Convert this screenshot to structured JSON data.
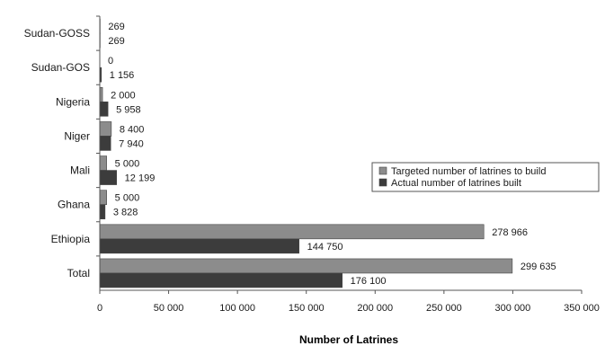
{
  "chart_data": {
    "type": "bar",
    "orientation": "horizontal",
    "categories": [
      "Sudan-GOSS",
      "Sudan-GOS",
      "Nigeria",
      "Niger",
      "Mali",
      "Ghana",
      "Ethiopia",
      "Total"
    ],
    "series": [
      {
        "name": "Targeted number of latrines to build",
        "color": "#8c8c8c",
        "values": [
          269,
          0,
          2000,
          8400,
          5000,
          5000,
          278966,
          299635
        ],
        "labels": [
          "269",
          "0",
          "2 000",
          "8 400",
          "5 000",
          "5 000",
          "278 966",
          "299 635"
        ]
      },
      {
        "name": "Actual number of latrines built",
        "color": "#3c3c3c",
        "values": [
          269,
          1156,
          5958,
          7940,
          12199,
          3828,
          144750,
          176100
        ],
        "labels": [
          "269",
          "1 156",
          "5 958",
          "7 940",
          "12 199",
          "3 828",
          "144 750",
          "176 100"
        ]
      }
    ],
    "xlim": [
      0,
      350000
    ],
    "xticks": [
      0,
      50000,
      100000,
      150000,
      200000,
      250000,
      300000,
      350000
    ],
    "xtick_labels": [
      "0",
      "50 000",
      "100 000",
      "150 000",
      "200 000",
      "250 000",
      "300 000",
      "350 000"
    ],
    "xlabel": "Number of Latrines",
    "ylabel": "",
    "title": "",
    "grid": false,
    "legend_position": "right"
  }
}
